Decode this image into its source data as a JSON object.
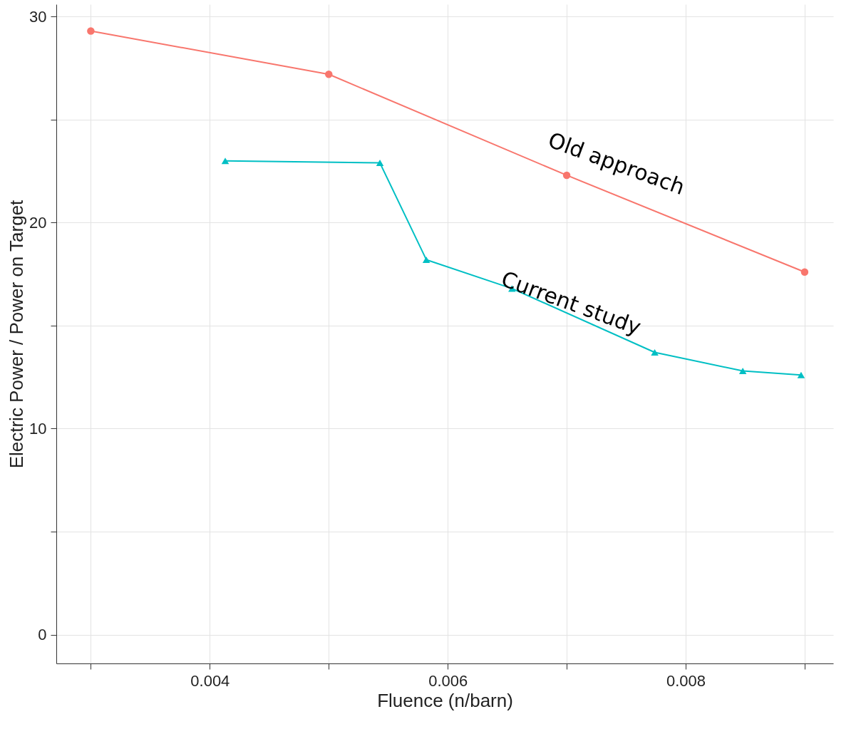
{
  "chart_data": {
    "type": "line",
    "xlabel": "Fluence (n/barn)",
    "ylabel": "Electric Power / Power on Target",
    "series": [
      {
        "name": "Old approach",
        "color": "#f8766d",
        "marker": "circle",
        "x": [
          0.003,
          0.005,
          0.007,
          0.009
        ],
        "values": [
          29.3,
          27.2,
          22.3,
          17.6
        ]
      },
      {
        "name": "Current study",
        "color": "#00bfc4",
        "marker": "triangle",
        "x": [
          0.00413,
          0.00543,
          0.00582,
          0.00654,
          0.00774,
          0.00848,
          0.00897
        ],
        "values": [
          23.0,
          22.9,
          18.2,
          16.8,
          13.7,
          12.8,
          12.6
        ]
      }
    ],
    "xlim": [
      0.00271,
      0.00924
    ],
    "ylim": [
      -1.4,
      30.6
    ],
    "xticks": [
      {
        "value": 0.003,
        "label": null
      },
      0.004,
      {
        "value": 0.005,
        "label": null
      },
      0.006,
      {
        "value": 0.007,
        "label": null
      },
      0.008,
      {
        "value": 0.009,
        "label": null
      }
    ],
    "yticks": [
      0,
      {
        "value": 5,
        "label": null
      },
      10,
      {
        "value": 15,
        "label": null
      },
      20,
      {
        "value": 25,
        "label": null
      },
      30
    ],
    "grid": true,
    "line_style": "solid"
  }
}
